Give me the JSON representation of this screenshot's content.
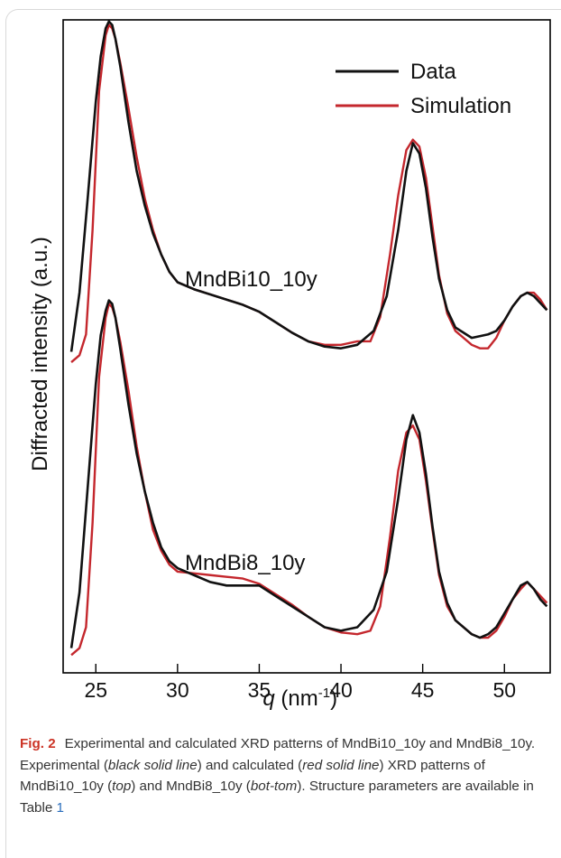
{
  "chart_data": {
    "type": "line",
    "xlabel_italic": "q",
    "xlabel_unit": " (nm",
    "xlabel_sup": "-1",
    "xlabel_close": ")",
    "ylabel": "Diffracted intensity (a.u.)",
    "xlim": [
      23,
      52.8
    ],
    "x_ticks": [
      25,
      30,
      35,
      40,
      45,
      50
    ],
    "grid": false,
    "legend_position": "top-right",
    "series": [
      {
        "name": "Data",
        "color": "#111111"
      },
      {
        "name": "Simulation",
        "color": "#c4272d"
      }
    ],
    "panels": [
      {
        "label": "MndBi10_10y",
        "data_x": [
          23.5,
          24.0,
          24.5,
          25.0,
          25.3,
          25.6,
          25.8,
          26.0,
          26.2,
          26.5,
          27.0,
          27.5,
          28.0,
          28.5,
          29.0,
          29.5,
          30.0,
          31.0,
          32.0,
          33.0,
          34.0,
          35.0,
          36.0,
          37.0,
          38.0,
          39.0,
          40.0,
          41.0,
          42.0,
          42.8,
          43.5,
          44.0,
          44.4,
          44.8,
          45.2,
          45.6,
          46.0,
          46.5,
          47.0,
          48.0,
          49.0,
          49.5,
          50.0,
          50.5,
          51.0,
          51.4,
          51.8,
          52.2,
          52.6
        ],
        "data_y": [
          0.1,
          0.27,
          0.54,
          0.82,
          0.95,
          1.03,
          1.05,
          1.04,
          1.0,
          0.92,
          0.76,
          0.62,
          0.52,
          0.44,
          0.38,
          0.33,
          0.3,
          0.28,
          0.265,
          0.25,
          0.235,
          0.215,
          0.185,
          0.155,
          0.13,
          0.115,
          0.11,
          0.12,
          0.16,
          0.26,
          0.45,
          0.62,
          0.7,
          0.67,
          0.57,
          0.43,
          0.31,
          0.22,
          0.17,
          0.14,
          0.15,
          0.16,
          0.19,
          0.23,
          0.26,
          0.27,
          0.26,
          0.24,
          0.22
        ],
        "sim_x": [
          23.5,
          24.0,
          24.4,
          24.8,
          25.2,
          25.6,
          25.8,
          26.0,
          26.2,
          26.5,
          27.0,
          27.5,
          28.0,
          28.5,
          29.0,
          29.5,
          30.0,
          31.0,
          32.0,
          33.0,
          34.0,
          35.0,
          36.0,
          37.0,
          38.0,
          39.0,
          40.0,
          41.0,
          41.8,
          42.4,
          43.0,
          43.5,
          44.0,
          44.4,
          44.8,
          45.2,
          45.6,
          46.0,
          46.5,
          47.0,
          48.0,
          48.5,
          49.0,
          49.5,
          50.0,
          50.5,
          51.0,
          51.4,
          51.8,
          52.2,
          52.6
        ],
        "sim_y": [
          0.07,
          0.09,
          0.15,
          0.45,
          0.85,
          1.01,
          1.04,
          1.03,
          1.0,
          0.93,
          0.8,
          0.66,
          0.54,
          0.45,
          0.38,
          0.33,
          0.3,
          0.28,
          0.265,
          0.25,
          0.235,
          0.215,
          0.185,
          0.155,
          0.13,
          0.12,
          0.12,
          0.13,
          0.13,
          0.2,
          0.38,
          0.55,
          0.68,
          0.71,
          0.69,
          0.6,
          0.46,
          0.32,
          0.21,
          0.16,
          0.12,
          0.11,
          0.11,
          0.14,
          0.19,
          0.23,
          0.26,
          0.27,
          0.27,
          0.25,
          0.22
        ]
      },
      {
        "label": "MndBi8_10y",
        "data_x": [
          23.5,
          24.0,
          24.5,
          25.0,
          25.3,
          25.6,
          25.8,
          26.0,
          26.2,
          26.5,
          27.0,
          27.5,
          28.0,
          28.5,
          29.0,
          29.5,
          30.0,
          31.0,
          32.0,
          33.0,
          34.0,
          35.0,
          36.0,
          37.0,
          38.0,
          39.0,
          40.0,
          41.0,
          42.0,
          42.8,
          43.5,
          44.0,
          44.4,
          44.8,
          45.2,
          45.6,
          46.0,
          46.5,
          47.0,
          48.0,
          48.5,
          49.0,
          49.5,
          50.0,
          50.5,
          51.0,
          51.4,
          51.8,
          52.2,
          52.6
        ],
        "data_y": [
          0.04,
          0.2,
          0.5,
          0.8,
          0.94,
          1.01,
          1.04,
          1.03,
          0.99,
          0.9,
          0.74,
          0.6,
          0.49,
          0.4,
          0.33,
          0.29,
          0.27,
          0.25,
          0.23,
          0.22,
          0.22,
          0.22,
          0.19,
          0.16,
          0.13,
          0.1,
          0.09,
          0.1,
          0.15,
          0.26,
          0.47,
          0.64,
          0.71,
          0.66,
          0.54,
          0.39,
          0.26,
          0.17,
          0.12,
          0.08,
          0.07,
          0.08,
          0.1,
          0.14,
          0.18,
          0.22,
          0.23,
          0.21,
          0.18,
          0.16
        ],
        "sim_x": [
          23.5,
          24.0,
          24.4,
          24.8,
          25.2,
          25.6,
          25.8,
          26.0,
          26.2,
          26.5,
          27.0,
          27.5,
          28.0,
          28.5,
          29.0,
          29.5,
          30.0,
          31.0,
          32.0,
          33.0,
          34.0,
          35.0,
          36.0,
          37.0,
          38.0,
          39.0,
          40.0,
          41.0,
          41.8,
          42.4,
          43.0,
          43.5,
          44.0,
          44.4,
          44.8,
          45.2,
          45.6,
          46.0,
          46.5,
          47.0,
          48.0,
          48.5,
          49.0,
          49.5,
          50.0,
          50.5,
          51.0,
          51.4,
          51.8,
          52.2,
          52.6
        ],
        "sim_y": [
          0.02,
          0.04,
          0.1,
          0.4,
          0.82,
          0.99,
          1.03,
          1.02,
          0.99,
          0.92,
          0.78,
          0.62,
          0.49,
          0.38,
          0.32,
          0.28,
          0.26,
          0.255,
          0.25,
          0.245,
          0.24,
          0.225,
          0.195,
          0.165,
          0.13,
          0.1,
          0.085,
          0.08,
          0.09,
          0.16,
          0.36,
          0.55,
          0.66,
          0.68,
          0.64,
          0.52,
          0.38,
          0.25,
          0.16,
          0.12,
          0.08,
          0.07,
          0.07,
          0.09,
          0.13,
          0.18,
          0.21,
          0.23,
          0.21,
          0.19,
          0.17
        ]
      }
    ]
  },
  "caption": {
    "fig_label": "Fig. 2",
    "t1": "Experimental and calculated XRD patterns of MndBi10_10y and MndBi8_10y. Experimental (",
    "e1": "black solid line",
    "t2": ") and calculated (",
    "e2": "red solid line",
    "t3": ") XRD patterns of MndBi10_10y (",
    "e3": "top",
    "t4": ") and MndBi8_10y (",
    "e4": "bot-tom",
    "t5": "). Structure parameters are available in Table ",
    "table_ref": "1"
  }
}
